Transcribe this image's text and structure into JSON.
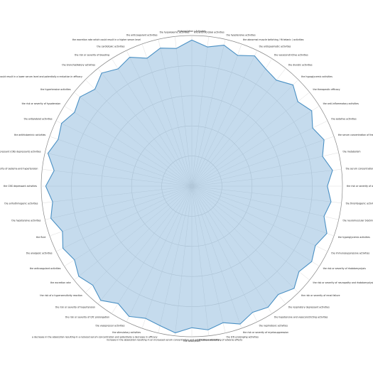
{
  "chart_data": {
    "type": "radar",
    "title": "",
    "rmax": 1,
    "grid": true,
    "colors": {
      "fill": "#7fb0d8",
      "stroke": "#4a90c4"
    },
    "axes": [
      "Hydroxylation / Activates",
      "the antimicrobial activities",
      "the hypotensive activities",
      "the abnormal muscle twitching / fit tetanic / activities",
      "the antispasmodic activities",
      "the vasoconstrictive activities",
      "the diuretic activities",
      "the hypoglycemic activities",
      "the therapeutic efficacy",
      "the anti-inflammatory activities",
      "the sedative activities",
      "the serum concentration of the active metabolites",
      "the metabolism",
      "the serum concentration",
      "the risk or severity of adverse effects",
      "the thrombogenic activities",
      "the neuromuscular blocking activities",
      "the hyperglycemic activities",
      "the immunosuppressive activities",
      "the risk or severity of rhabdomyolysis",
      "the risk or severity of neuropathy and rhabdomyolysis",
      "the risk or severity of renal failure",
      "the respiratory depressant activities",
      "the hypotensive and vasoconstricting activities",
      "the nephrotoxic activities",
      "the risk or severity of myelosuppression",
      "the QTc-prolonging activities",
      "the bioavailability",
      "the absorption",
      "increase in the absorption resulting in an increased serum concentration and potentially a worsening of adverse effects",
      "a decrease in the absorption resulting in a reduced serum concentration and potentially a decrease in efficacy",
      "the stimulatory activities",
      "the vasopressor activities",
      "the risk or severity of QTc prolongation",
      "the risk or severity of hypertension",
      "the risk of a hypersensitivity reaction",
      "the excretion rate",
      "the anticoagulant activities",
      "the analgesic activities",
      "the fluid",
      "the hypotensive activities",
      "the arrhythmogenic activities",
      "the CNS depressant activities",
      "the risk or severity of oedema and hypertension",
      "the central nervous system depressant (CNS depressant) activities",
      "the antihistaminic activities",
      "the antiplatelet activities",
      "the risk or severity of hypotension",
      "the hypertensive activities",
      "the excretion rate which could result in a lower serum level and potentially a reduction in efficacy",
      "the bronchodilatory activities",
      "the risk or severity of bleeding",
      "the cardiotoxic activities",
      "the excretion rate which could result in a higher serum level",
      "the anticoagulant activities",
      "the hypokalemic activities"
    ],
    "series": [
      {
        "name": "",
        "values": [
          0.97,
          0.93,
          0.96,
          0.92,
          0.96,
          0.92,
          0.9,
          0.95,
          0.9,
          0.94,
          0.89,
          0.93,
          0.89,
          0.94,
          0.9,
          0.93,
          0.9,
          0.95,
          0.91,
          0.94,
          0.91,
          0.96,
          0.92,
          0.95,
          0.93,
          0.97,
          0.93,
          0.96,
          0.94,
          0.98,
          0.95,
          0.93,
          0.96,
          0.92,
          0.97,
          0.93,
          0.96,
          0.92,
          0.95,
          0.91,
          0.96,
          0.93,
          0.97,
          0.92,
          0.98,
          0.94,
          0.96,
          0.92,
          0.95,
          0.91,
          0.96,
          0.92,
          0.95,
          0.9,
          0.94,
          0.92
        ]
      }
    ]
  }
}
